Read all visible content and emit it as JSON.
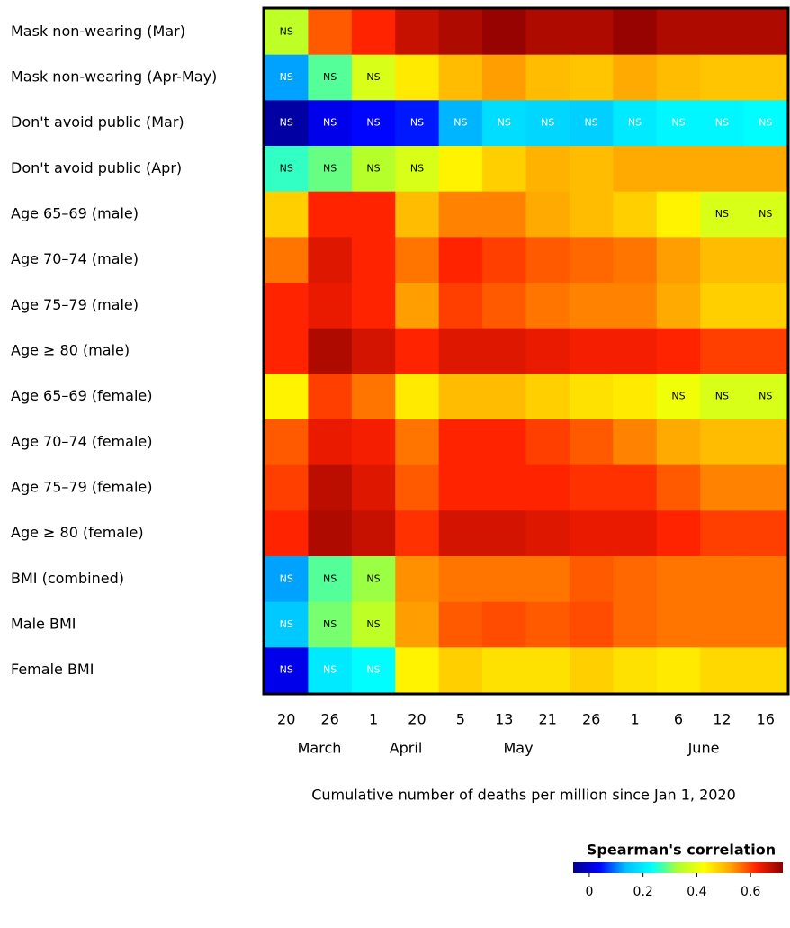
{
  "chart_data": {
    "type": "heatmap",
    "rows": [
      "Mask non-wearing (Mar)",
      "Mask non-wearing (Apr-May)",
      "Don't avoid public (Mar)",
      "Don't avoid public (Apr)",
      "Age 65–69 (male)",
      "Age 70–74 (male)",
      "Age 75–79 (male)",
      "Age ≥ 80 (male)",
      "Age 65–69 (female)",
      "Age 70–74 (female)",
      "Age 75–79 (female)",
      "Age ≥ 80 (female)",
      "BMI (combined)",
      "Male BMI",
      "Female BMI"
    ],
    "categories": [
      "20",
      "26",
      "1",
      "20",
      "5",
      "13",
      "21",
      "26",
      "1",
      "6",
      "12",
      "16"
    ],
    "months": [
      "March",
      "April",
      "May",
      "June"
    ],
    "x_label": "Cumulative number of deaths per million since Jan 1, 2020",
    "values": [
      [
        0.35,
        0.58,
        0.62,
        0.67,
        0.69,
        0.71,
        0.69,
        0.69,
        0.71,
        0.69,
        0.69,
        0.69
      ],
      [
        0.12,
        0.28,
        0.38,
        0.45,
        0.5,
        0.53,
        0.5,
        0.49,
        0.52,
        0.5,
        0.49,
        0.49
      ],
      [
        -0.04,
        0.02,
        0.04,
        0.05,
        0.13,
        0.18,
        0.17,
        0.16,
        0.2,
        0.22,
        0.22,
        0.23
      ],
      [
        0.26,
        0.29,
        0.34,
        0.38,
        0.44,
        0.48,
        0.51,
        0.5,
        0.52,
        0.52,
        0.52,
        0.52
      ],
      [
        0.48,
        0.62,
        0.62,
        0.5,
        0.55,
        0.55,
        0.52,
        0.5,
        0.48,
        0.44,
        0.38,
        0.38
      ],
      [
        0.56,
        0.65,
        0.62,
        0.56,
        0.62,
        0.6,
        0.58,
        0.57,
        0.56,
        0.53,
        0.5,
        0.5
      ],
      [
        0.62,
        0.64,
        0.62,
        0.53,
        0.6,
        0.58,
        0.56,
        0.55,
        0.55,
        0.52,
        0.48,
        0.48
      ],
      [
        0.62,
        0.69,
        0.66,
        0.62,
        0.65,
        0.65,
        0.64,
        0.63,
        0.63,
        0.62,
        0.6,
        0.6
      ],
      [
        0.44,
        0.6,
        0.56,
        0.45,
        0.5,
        0.5,
        0.48,
        0.46,
        0.45,
        0.41,
        0.38,
        0.38
      ],
      [
        0.58,
        0.64,
        0.63,
        0.56,
        0.62,
        0.62,
        0.6,
        0.58,
        0.55,
        0.52,
        0.5,
        0.5
      ],
      [
        0.6,
        0.68,
        0.65,
        0.58,
        0.62,
        0.62,
        0.62,
        0.61,
        0.61,
        0.58,
        0.55,
        0.55
      ],
      [
        0.62,
        0.69,
        0.67,
        0.61,
        0.66,
        0.66,
        0.65,
        0.64,
        0.64,
        0.62,
        0.6,
        0.6
      ],
      [
        0.12,
        0.28,
        0.32,
        0.54,
        0.56,
        0.56,
        0.56,
        0.58,
        0.57,
        0.56,
        0.56,
        0.56
      ],
      [
        0.15,
        0.3,
        0.35,
        0.53,
        0.58,
        0.59,
        0.58,
        0.59,
        0.57,
        0.56,
        0.56,
        0.56
      ],
      [
        0.02,
        0.2,
        0.23,
        0.44,
        0.48,
        0.46,
        0.46,
        0.48,
        0.46,
        0.45,
        0.47,
        0.47
      ]
    ],
    "value_labels": [
      [
        "NS",
        null,
        null,
        null,
        null,
        null,
        null,
        null,
        null,
        null,
        null,
        null
      ],
      [
        "NS",
        "NS",
        "NS",
        null,
        null,
        null,
        null,
        null,
        null,
        null,
        null,
        null
      ],
      [
        "NS",
        "NS",
        "NS",
        "NS",
        "NS",
        "NS",
        "NS",
        "NS",
        "NS",
        "NS",
        "NS",
        "NS"
      ],
      [
        "NS",
        "NS",
        "NS",
        "NS",
        null,
        null,
        null,
        null,
        null,
        null,
        null,
        null
      ],
      [
        null,
        null,
        null,
        null,
        null,
        null,
        null,
        null,
        null,
        null,
        "NS",
        "NS"
      ],
      [
        null,
        null,
        null,
        null,
        null,
        null,
        null,
        null,
        null,
        null,
        null,
        null
      ],
      [
        null,
        null,
        null,
        null,
        null,
        null,
        null,
        null,
        null,
        null,
        null,
        null
      ],
      [
        null,
        null,
        null,
        null,
        null,
        null,
        null,
        null,
        null,
        null,
        null,
        null
      ],
      [
        null,
        null,
        null,
        null,
        null,
        null,
        null,
        null,
        null,
        "NS",
        "NS",
        "NS"
      ],
      [
        null,
        null,
        null,
        null,
        null,
        null,
        null,
        null,
        null,
        null,
        null,
        null
      ],
      [
        null,
        null,
        null,
        null,
        null,
        null,
        null,
        null,
        null,
        null,
        null,
        null
      ],
      [
        null,
        null,
        null,
        null,
        null,
        null,
        null,
        null,
        null,
        null,
        null,
        null
      ],
      [
        "NS",
        "NS",
        "NS",
        null,
        null,
        null,
        null,
        null,
        null,
        null,
        null,
        null
      ],
      [
        "NS",
        "NS",
        "NS",
        null,
        null,
        null,
        null,
        null,
        null,
        null,
        null,
        null
      ],
      [
        "NS",
        "NS",
        "NS",
        null,
        null,
        null,
        null,
        null,
        null,
        null,
        null,
        null
      ]
    ],
    "colorbar_title": "Spearman's correlation",
    "zlim": [
      -0.06,
      0.72
    ],
    "zticks": [
      0,
      0.2,
      0.4,
      0.6
    ],
    "colormap": [
      "#00008b",
      "#0000ff",
      "#00bfff",
      "#00ffff",
      "#adff2f",
      "#ffff00",
      "#ffa500",
      "#ff2000",
      "#8b0000"
    ]
  }
}
